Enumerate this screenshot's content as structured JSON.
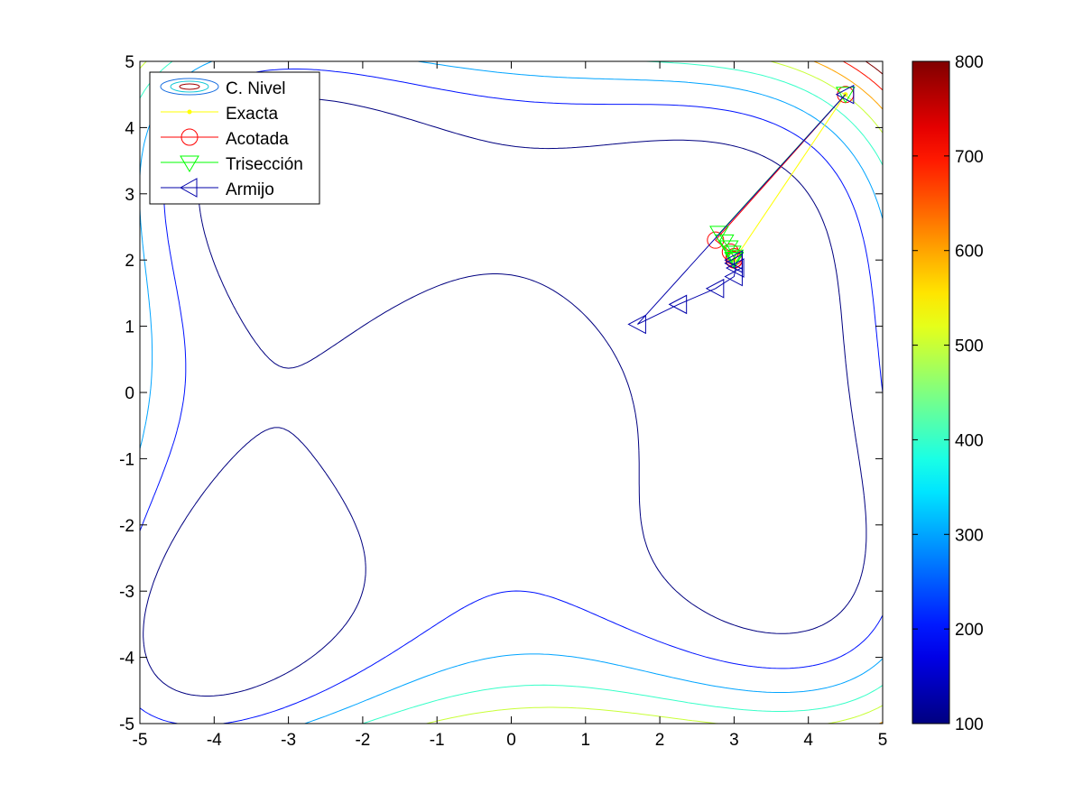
{
  "chart_data": {
    "type": "contour",
    "title": "",
    "xlabel": "",
    "ylabel": "",
    "xlim": [
      -5,
      5
    ],
    "ylim": [
      -5,
      5
    ],
    "xticks": [
      "-5",
      "-4",
      "-3",
      "-2",
      "-1",
      "0",
      "1",
      "2",
      "3",
      "4",
      "5"
    ],
    "yticks": [
      "-5",
      "-4",
      "-3",
      "-2",
      "-1",
      "0",
      "1",
      "2",
      "3",
      "4",
      "5"
    ],
    "grid": false,
    "function": "(x^2 + y - 11)^2 + (x + y^2 - 7)^2",
    "contour_levels": [
      100,
      200,
      300,
      400,
      500,
      600,
      700,
      800
    ],
    "colorbar": {
      "ticks": [
        "100",
        "200",
        "300",
        "400",
        "500",
        "600",
        "700",
        "800"
      ],
      "range": [
        100,
        800
      ],
      "colormap": "jet"
    },
    "legend": {
      "position": "top-left",
      "entries": [
        "C. Nivel",
        "Exacta",
        "Acotada",
        "Trisección",
        "Armijo"
      ]
    },
    "series": [
      {
        "name": "Exacta",
        "color": "#ffff00",
        "marker": "dot",
        "points": [
          [
            4.5,
            4.5
          ],
          [
            3.0,
            2.0
          ]
        ]
      },
      {
        "name": "Acotada",
        "color": "#ff0000",
        "marker": "circle",
        "points": [
          [
            4.5,
            4.5
          ],
          [
            2.75,
            2.3
          ],
          [
            2.95,
            2.12
          ],
          [
            3.0,
            2.05
          ],
          [
            3.0,
            2.01
          ],
          [
            3.0,
            2.0
          ]
        ]
      },
      {
        "name": "Trisección",
        "color": "#00ff00",
        "marker": "triangle-down",
        "points": [
          [
            4.5,
            4.5
          ],
          [
            2.8,
            2.4
          ],
          [
            2.87,
            2.27
          ],
          [
            2.93,
            2.18
          ],
          [
            2.97,
            2.1
          ],
          [
            3.0,
            2.04
          ],
          [
            3.0,
            2.01
          ],
          [
            3.0,
            2.0
          ]
        ]
      },
      {
        "name": "Armijo",
        "color": "#0000aa",
        "marker": "triangle-left",
        "points": [
          [
            4.5,
            4.5
          ],
          [
            1.7,
            1.03
          ],
          [
            2.25,
            1.33
          ],
          [
            2.75,
            1.57
          ],
          [
            3.0,
            1.75
          ],
          [
            3.02,
            1.88
          ],
          [
            3.0,
            1.95
          ],
          [
            3.0,
            2.0
          ]
        ]
      }
    ]
  }
}
